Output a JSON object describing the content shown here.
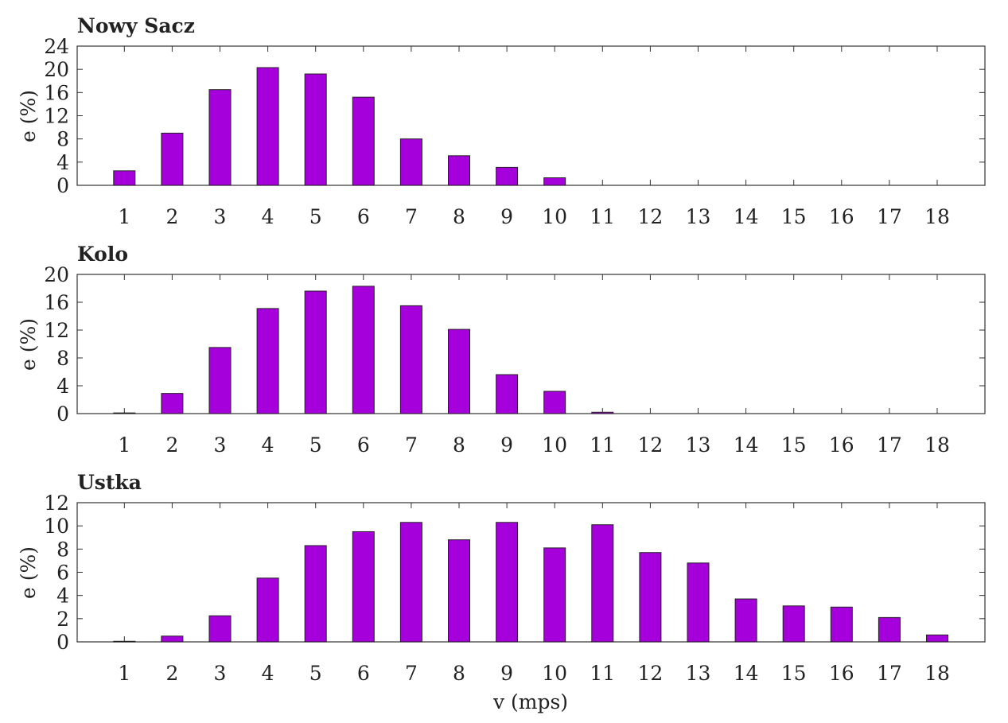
{
  "chart_data": [
    {
      "type": "bar",
      "title": "Nowy Sacz",
      "xlabel": "",
      "ylabel": "e (%)",
      "ylim": [
        0,
        24
      ],
      "yticks": [
        0,
        4,
        8,
        12,
        16,
        20,
        24
      ],
      "categories": [
        "1",
        "2",
        "3",
        "4",
        "5",
        "6",
        "7",
        "8",
        "9",
        "10",
        "11",
        "12",
        "13",
        "14",
        "15",
        "16",
        "17",
        "18"
      ],
      "values": [
        2.5,
        9.0,
        16.5,
        20.3,
        19.2,
        15.2,
        8.0,
        5.1,
        3.1,
        1.3,
        0,
        0,
        0,
        0,
        0,
        0,
        0,
        0
      ],
      "bar_color": "#a500dc"
    },
    {
      "type": "bar",
      "title": "Kolo",
      "xlabel": "",
      "ylabel": "e (%)",
      "ylim": [
        0,
        20
      ],
      "yticks": [
        0,
        4,
        8,
        12,
        16,
        20
      ],
      "categories": [
        "1",
        "2",
        "3",
        "4",
        "5",
        "6",
        "7",
        "8",
        "9",
        "10",
        "11",
        "12",
        "13",
        "14",
        "15",
        "16",
        "17",
        "18"
      ],
      "values": [
        0.1,
        2.9,
        9.5,
        15.1,
        17.6,
        18.3,
        15.5,
        12.1,
        5.6,
        3.2,
        0.2,
        0,
        0,
        0,
        0,
        0,
        0,
        0
      ],
      "bar_color": "#a500dc"
    },
    {
      "type": "bar",
      "title": "Ustka",
      "xlabel": "v (mps)",
      "ylabel": "e (%)",
      "ylim": [
        0,
        12
      ],
      "yticks": [
        0,
        2,
        4,
        6,
        8,
        10,
        12
      ],
      "categories": [
        "1",
        "2",
        "3",
        "4",
        "5",
        "6",
        "7",
        "8",
        "9",
        "10",
        "11",
        "12",
        "13",
        "14",
        "15",
        "16",
        "17",
        "18"
      ],
      "values": [
        0.05,
        0.5,
        2.25,
        5.5,
        8.3,
        9.5,
        10.3,
        8.8,
        10.3,
        8.1,
        10.1,
        7.7,
        6.8,
        3.7,
        3.1,
        3.0,
        2.1,
        0.6
      ],
      "bar_color": "#a500dc"
    }
  ]
}
